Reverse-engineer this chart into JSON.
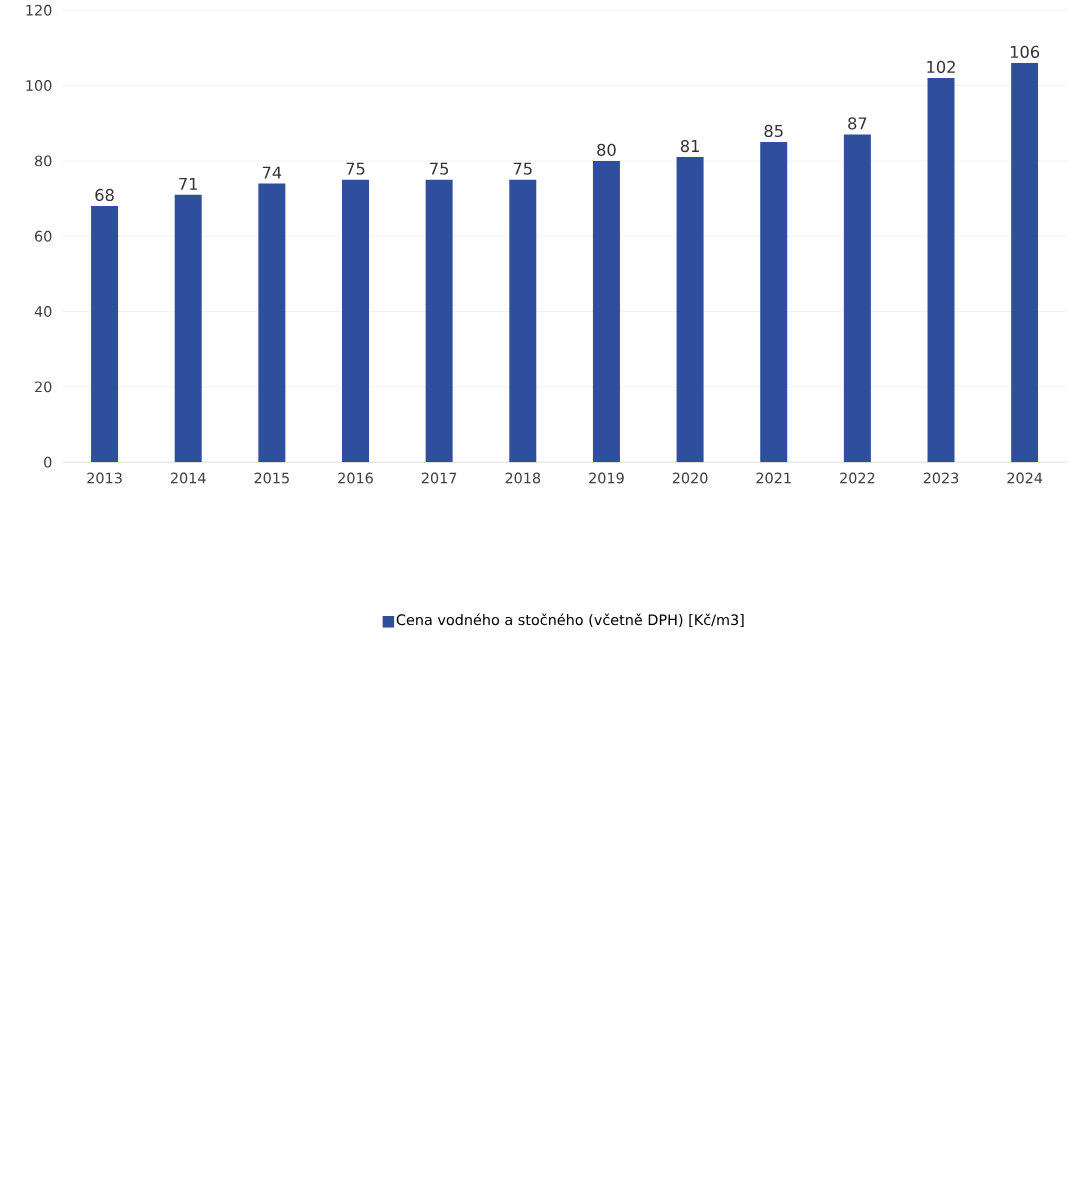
{
  "chart_data": {
    "type": "bar",
    "categories": [
      "2013",
      "2014",
      "2015",
      "2016",
      "2017",
      "2018",
      "2019",
      "2020",
      "2021",
      "2022",
      "2023",
      "2024"
    ],
    "series": [
      {
        "name": "Cena vodného a stočného (včetně DPH) [Kč/m3]",
        "color": "#2f4f9e",
        "values": [
          68,
          71,
          74,
          75,
          75,
          75,
          80,
          81,
          85,
          87,
          102,
          106
        ]
      }
    ],
    "ylim": [
      0,
      120
    ],
    "yticks": [
      0,
      20,
      40,
      60,
      80,
      100,
      120
    ],
    "grid": "y",
    "legend": "bottom",
    "data_labels": true
  }
}
